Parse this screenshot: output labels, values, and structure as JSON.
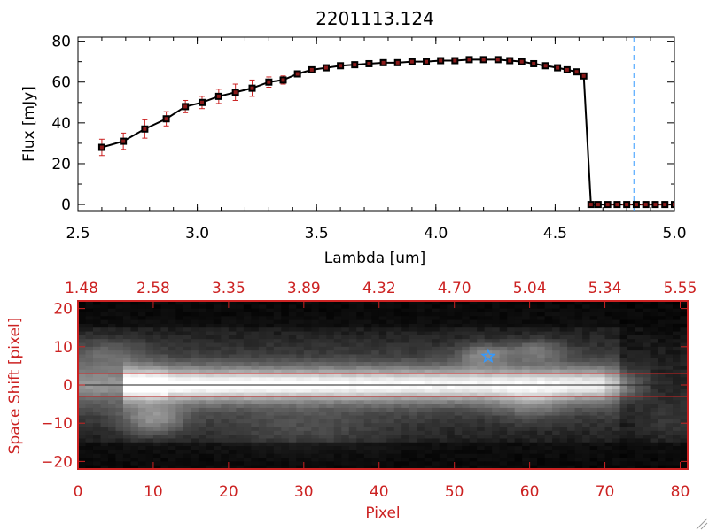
{
  "colors": {
    "red": "#cc2222",
    "black": "#000000",
    "blue": "#3399ff",
    "background": "#ffffff"
  },
  "chart_data": [
    {
      "type": "line",
      "title": "2201113.124",
      "xlabel": "Lambda [um]",
      "ylabel": "Flux [mJy]",
      "xlim": [
        2.5,
        5.0
      ],
      "ylim": [
        -3,
        82
      ],
      "x_ticks": [
        2.5,
        3.0,
        3.5,
        4.0,
        4.5,
        5.0
      ],
      "x_tick_labels": [
        "2.5",
        "3.0",
        "3.5",
        "4.0",
        "4.5",
        "5.0"
      ],
      "y_ticks": [
        0,
        20,
        40,
        60,
        80
      ],
      "y_tick_labels": [
        "0",
        "20",
        "40",
        "60",
        "80"
      ],
      "vline": {
        "x": 4.83,
        "style": "dashed",
        "color": "blue"
      },
      "series": [
        {
          "name": "flux",
          "x": [
            2.6,
            2.69,
            2.78,
            2.87,
            2.95,
            3.02,
            3.09,
            3.16,
            3.23,
            3.3,
            3.36,
            3.42,
            3.48,
            3.54,
            3.6,
            3.66,
            3.72,
            3.78,
            3.84,
            3.9,
            3.96,
            4.02,
            4.08,
            4.14,
            4.2,
            4.26,
            4.31,
            4.36,
            4.41,
            4.46,
            4.51,
            4.55,
            4.59,
            4.62,
            4.65,
            4.68,
            4.72,
            4.76,
            4.8,
            4.84,
            4.88,
            4.92,
            4.96,
            5.0
          ],
          "y": [
            28,
            31,
            37,
            42,
            48,
            50,
            53,
            55,
            57,
            60,
            61,
            64,
            66,
            67,
            68,
            68.5,
            69,
            69.5,
            69.5,
            70,
            70,
            70.5,
            70.5,
            71,
            71,
            71,
            70.5,
            70,
            69,
            68,
            67,
            66,
            65,
            63,
            0,
            0,
            0,
            0,
            0,
            0,
            0,
            0,
            0,
            0
          ],
          "err": [
            4,
            4,
            4.5,
            3.5,
            3,
            3,
            3.5,
            4,
            4,
            2.5,
            2,
            1,
            0.8,
            0.8,
            0.6,
            0.6,
            0.6,
            0.6,
            0.6,
            0.6,
            0.6,
            0.6,
            0.6,
            0.6,
            0.6,
            1,
            1.5,
            1.5,
            1,
            0.8,
            0.8,
            0.8,
            1,
            1,
            0,
            0,
            0,
            0,
            0,
            0,
            0,
            0,
            0,
            0
          ]
        }
      ]
    },
    {
      "type": "heatmap",
      "xlabel": "Pixel",
      "ylabel": "Space Shift [pixel]",
      "xlim": [
        0,
        81
      ],
      "ylim": [
        -22,
        22
      ],
      "x_ticks": [
        0,
        10,
        20,
        30,
        40,
        50,
        60,
        70,
        80
      ],
      "x_tick_labels": [
        "0",
        "10",
        "20",
        "30",
        "40",
        "50",
        "60",
        "70",
        "80"
      ],
      "y_ticks": [
        -20,
        -10,
        0,
        10,
        20
      ],
      "y_tick_labels": [
        "−20",
        "−10",
        "0",
        "10",
        "20"
      ],
      "top_axis_labels": [
        "1.48",
        "2.58",
        "3.35",
        "3.89",
        "4.32",
        "4.70",
        "5.04",
        "5.34",
        "5.55"
      ],
      "hlines": [
        3,
        -3
      ],
      "center_line": 0,
      "star_marker": {
        "x": 54.5,
        "y": 7.5
      }
    }
  ]
}
